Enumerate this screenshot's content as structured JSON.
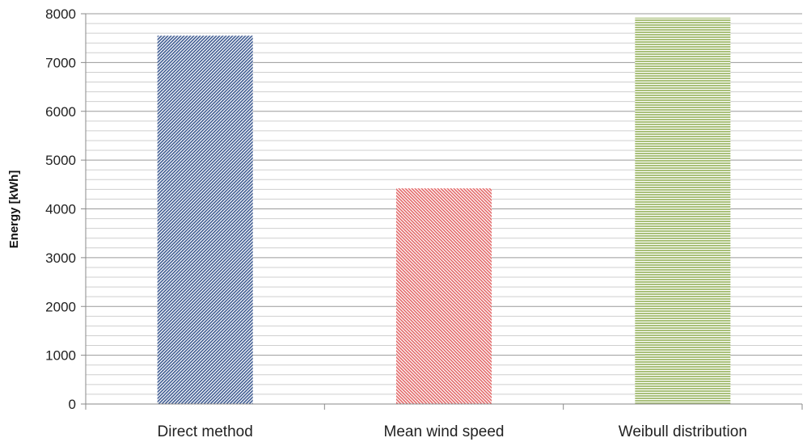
{
  "chart_data": {
    "type": "bar",
    "title": "",
    "xlabel": "",
    "ylabel": "Energy [kWh]",
    "categories": [
      "Direct method",
      "Mean wind speed",
      "Weibull distribution"
    ],
    "values": [
      7550,
      4420,
      7920
    ],
    "ylim": [
      0,
      8000
    ],
    "yticks": [
      0,
      1000,
      2000,
      3000,
      4000,
      5000,
      6000,
      7000,
      8000
    ],
    "minor_step": 200,
    "grid": true,
    "legend": "none",
    "colors": {
      "bars": [
        "#3f5c92",
        "#e36a6a",
        "#a9c07a"
      ],
      "bar_background": "#ffffff",
      "major_grid": "#9a9a9a",
      "minor_grid": "#cfcfcf",
      "axis": "#8a8a8a"
    },
    "patterns": [
      "diagonal-right",
      "diagonal-left",
      "horizontal"
    ]
  }
}
